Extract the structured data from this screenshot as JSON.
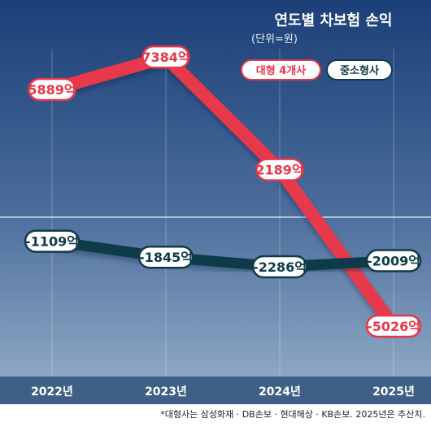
{
  "chart_data": {
    "type": "line",
    "title": "연도별 차보험 손익",
    "unit_label": "(단위=원)",
    "categories": [
      "2022년",
      "2023년",
      "2024년",
      "2025년"
    ],
    "series": [
      {
        "name": "대형 4개사",
        "values": [
          5889,
          7384,
          2189,
          -5026
        ],
        "labels": [
          "5889억",
          "7384억",
          "2189억",
          "-5026억"
        ],
        "color": "#e8374b"
      },
      {
        "name": "중소형사",
        "values": [
          -1109,
          -1845,
          -2286,
          -2009
        ],
        "labels": [
          "-1109억",
          "-1845억",
          "-2286억",
          "-2009억"
        ],
        "color": "#0f3a48"
      }
    ],
    "grid": true,
    "legend_position": "top-right",
    "footnote": "*대형사는 삼성화재 · DB손보 · 현대해상 · KB손보. 2025년은 추산치."
  }
}
